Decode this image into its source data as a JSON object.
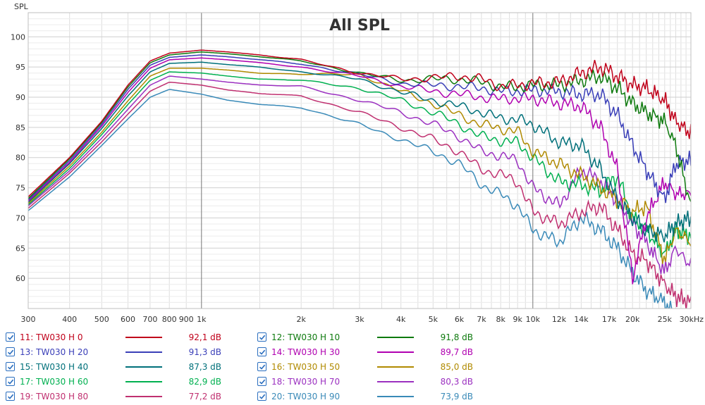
{
  "chart_data": {
    "type": "line",
    "title": "All SPL",
    "ylabel": "SPL",
    "xlabel": "",
    "xscale": "log",
    "xlim": [
      300,
      30000
    ],
    "ylim": [
      55,
      104
    ],
    "grid": true,
    "y_ticks": [
      "100",
      "95",
      "90",
      "85",
      "80",
      "75",
      "70",
      "65",
      "60"
    ],
    "x_ticks": [
      "300",
      "400",
      "500",
      "600",
      "700",
      "800",
      "900",
      "1k",
      "2k",
      "3k",
      "4k",
      "5k",
      "6k",
      "7k",
      "8k",
      "9k",
      "10k",
      "12k",
      "14k",
      "17k",
      "20k",
      "25k",
      "30kHz"
    ],
    "series": [
      {
        "name": "11: TW030 H 0",
        "value": "92,1 dB",
        "color": "#c0001a",
        "x": [
          300,
          400,
          500,
          600,
          700,
          800,
          1000,
          1200,
          1500,
          2000,
          3000,
          4000,
          5000,
          6000,
          7000,
          8000,
          9000,
          10000,
          12000,
          14000,
          16000,
          18000,
          20000,
          22000,
          25000,
          27000,
          30000
        ],
        "y": [
          73.5,
          80,
          86,
          92,
          96,
          97.3,
          97.8,
          97.5,
          97,
          96.2,
          94,
          93,
          93.2,
          93.5,
          93,
          91.8,
          92,
          92.3,
          92.5,
          94,
          95,
          93.5,
          92,
          91.5,
          89.5,
          86,
          84
        ]
      },
      {
        "name": "12: TW030 H 10",
        "value": "91,8 dB",
        "color": "#0e7a0e",
        "x": [
          300,
          400,
          500,
          600,
          700,
          800,
          1000,
          1200,
          1500,
          2000,
          3000,
          4000,
          5000,
          6000,
          7000,
          8000,
          9000,
          10000,
          12000,
          14000,
          16000,
          18000,
          20000,
          22000,
          25000,
          27000,
          30000
        ],
        "y": [
          73.2,
          79.8,
          85.8,
          91.7,
          95.7,
          97,
          97.5,
          97.2,
          96.7,
          96,
          94,
          92.8,
          93,
          93,
          92.5,
          91.7,
          91.7,
          92,
          92,
          92.8,
          93.5,
          91.5,
          89,
          87.5,
          86,
          82,
          72
        ]
      },
      {
        "name": "13: TW030 H 20",
        "value": "91,3 dB",
        "color": "#3a3fb8",
        "x": [
          300,
          400,
          500,
          600,
          700,
          800,
          1000,
          1200,
          1500,
          2000,
          3000,
          4000,
          5000,
          6000,
          7000,
          8000,
          9000,
          10000,
          12000,
          14000,
          16000,
          18000,
          20000,
          22000,
          25000,
          27000,
          30000
        ],
        "y": [
          73,
          79.5,
          85.5,
          91.3,
          95.3,
          96.6,
          97,
          96.7,
          96.2,
          95.5,
          93.8,
          92.3,
          92,
          91.8,
          91.5,
          91,
          91,
          91.2,
          91,
          90.5,
          90.5,
          87,
          82,
          78,
          73,
          79,
          79.5
        ]
      },
      {
        "name": "14: TW030 H 30",
        "value": "89,7 dB",
        "color": "#b000b0",
        "x": [
          300,
          400,
          500,
          600,
          700,
          800,
          1000,
          1200,
          1500,
          2000,
          3000,
          4000,
          5000,
          6000,
          7000,
          8000,
          9000,
          10000,
          12000,
          14000,
          16000,
          18000,
          20000,
          22000,
          25000,
          27000,
          30000
        ],
        "y": [
          72.8,
          79.2,
          85.2,
          90.8,
          94.8,
          96.2,
          96.5,
          96.2,
          95.7,
          95,
          93.5,
          91.8,
          91,
          90.5,
          90,
          89.7,
          89.8,
          89.8,
          89,
          88.5,
          85,
          78,
          60,
          70,
          76,
          74,
          74
        ]
      },
      {
        "name": "15: TW030 H 40",
        "value": "87,3 dB",
        "color": "#00707a",
        "x": [
          300,
          400,
          500,
          600,
          700,
          800,
          1000,
          1200,
          1500,
          2000,
          3000,
          4000,
          5000,
          6000,
          7000,
          8000,
          9000,
          10000,
          12000,
          14000,
          16000,
          18000,
          20000,
          22000,
          25000,
          27000,
          30000
        ],
        "y": [
          72.6,
          79,
          84.8,
          90.2,
          94.2,
          95.6,
          95.8,
          95.4,
          95,
          94.2,
          93,
          90.8,
          89.5,
          88.5,
          87.5,
          86.5,
          86.3,
          85.5,
          82.5,
          82,
          78,
          73,
          70,
          68,
          67,
          69,
          70
        ]
      },
      {
        "name": "16: TW030 H 50",
        "value": "85,0 dB",
        "color": "#b08a00",
        "x": [
          300,
          400,
          500,
          600,
          700,
          800,
          1000,
          1200,
          1500,
          2000,
          3000,
          4000,
          5000,
          6000,
          7000,
          8000,
          9000,
          10000,
          12000,
          14000,
          16000,
          18000,
          20000,
          22000,
          25000,
          27000,
          30000
        ],
        "y": [
          72.4,
          78.6,
          84.2,
          89.4,
          93.5,
          94.8,
          94.8,
          94.5,
          94,
          93.8,
          93.8,
          91,
          89,
          87,
          85.5,
          84.8,
          84.3,
          81,
          79,
          77,
          75,
          73,
          71,
          72,
          63,
          68,
          66
        ]
      },
      {
        "name": "17: TW030 H 60",
        "value": "82,9 dB",
        "color": "#00b050",
        "x": [
          300,
          400,
          500,
          600,
          700,
          800,
          1000,
          1200,
          1500,
          2000,
          3000,
          4000,
          5000,
          6000,
          7000,
          8000,
          9000,
          10000,
          12000,
          14000,
          16000,
          18000,
          20000,
          22000,
          25000,
          27000,
          30000
        ],
        "y": [
          72.2,
          78.2,
          83.8,
          88.8,
          92.8,
          94.2,
          94,
          93.5,
          93,
          92.8,
          91.5,
          89.5,
          87.5,
          85.5,
          83.5,
          82.8,
          82.5,
          80,
          76,
          75.5,
          74.5,
          77,
          70,
          68,
          64,
          68,
          67
        ]
      },
      {
        "name": "18: TW030 H 70",
        "value": "80,3 dB",
        "color": "#9b30c0",
        "x": [
          300,
          400,
          500,
          600,
          700,
          800,
          1000,
          1200,
          1500,
          2000,
          3000,
          4000,
          5000,
          6000,
          7000,
          8000,
          9000,
          10000,
          12000,
          14000,
          16000,
          18000,
          20000,
          22000,
          25000,
          27000,
          30000
        ],
        "y": [
          72,
          77.8,
          83.2,
          88,
          92,
          93.5,
          93,
          92.5,
          92,
          91.8,
          89.5,
          87.5,
          85.5,
          83.5,
          81,
          80.3,
          79.5,
          75,
          72,
          78,
          76,
          73,
          69,
          66,
          61,
          65,
          62
        ]
      },
      {
        "name": "19: TW030 H 80",
        "value": "77,2 dB",
        "color": "#c03070",
        "x": [
          300,
          400,
          500,
          600,
          700,
          800,
          1000,
          1200,
          1500,
          2000,
          3000,
          4000,
          5000,
          6000,
          7000,
          8000,
          9000,
          10000,
          12000,
          14000,
          16000,
          18000,
          20000,
          22000,
          25000,
          27000,
          30000
        ],
        "y": [
          71.6,
          77.4,
          82.6,
          87.2,
          91,
          92.5,
          92,
          91.2,
          90.6,
          90.2,
          87.5,
          85,
          83,
          81,
          78,
          77.2,
          76,
          71,
          69,
          71,
          72,
          68,
          64,
          63,
          59,
          57,
          56
        ]
      },
      {
        "name": "20: TW030 H 90",
        "value": "73,9 dB",
        "color": "#3a8ab8",
        "x": [
          300,
          400,
          500,
          600,
          700,
          800,
          1000,
          1200,
          1500,
          2000,
          3000,
          4000,
          5000,
          6000,
          7000,
          8000,
          9000,
          10000,
          12000,
          14000,
          16000,
          18000,
          20000,
          22000,
          25000,
          27000,
          30000
        ],
        "y": [
          71.2,
          76.8,
          82,
          86.4,
          90,
          91.3,
          90.5,
          89.5,
          88.8,
          88.3,
          85.5,
          83,
          81,
          79,
          75.5,
          73.9,
          72,
          68,
          66,
          70,
          68,
          65,
          61,
          58,
          56,
          54,
          53
        ]
      }
    ]
  }
}
